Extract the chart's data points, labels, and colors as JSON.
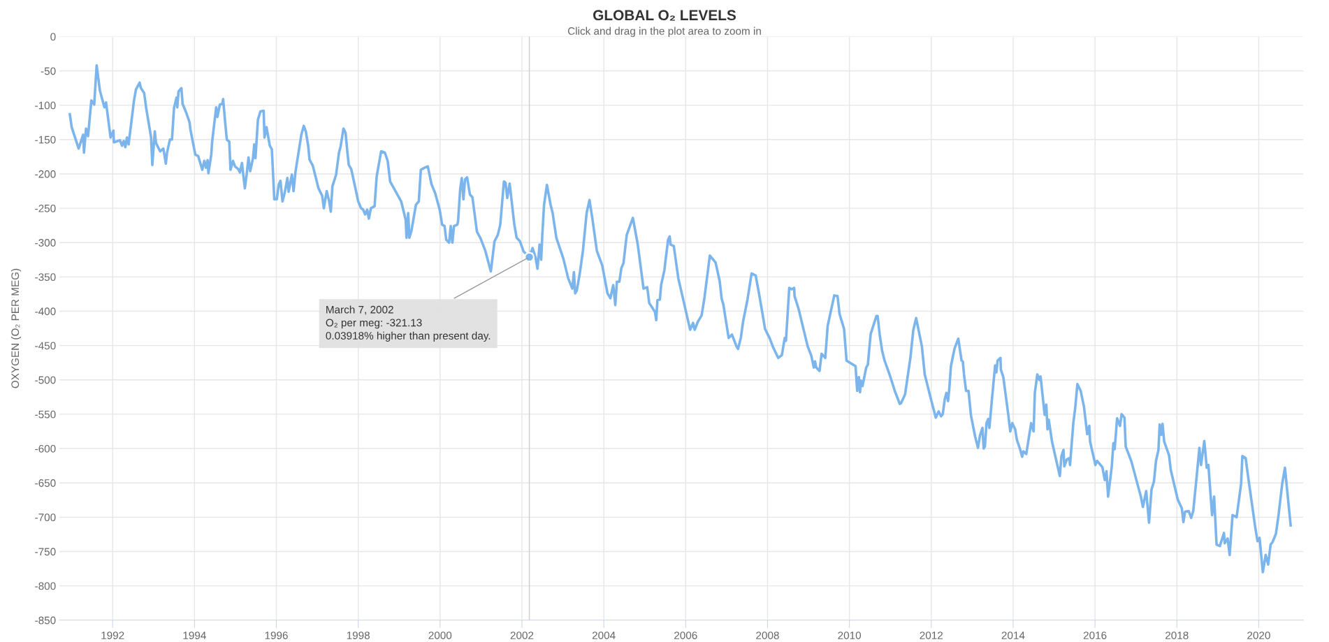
{
  "chart_data": {
    "type": "line",
    "title": "GLOBAL O₂ LEVELS",
    "subtitle": "Click and drag in the plot area to zoom in",
    "ylabel": "OXYGEN (O₂ PER MEG)",
    "xlim": [
      1990.7,
      2021.09
    ],
    "xticks": [
      1992,
      1994,
      1996,
      1998,
      2000,
      2002,
      2004,
      2006,
      2008,
      2010,
      2012,
      2014,
      2016,
      2018,
      2020
    ],
    "ylim": [
      -850,
      0
    ],
    "yticks": [
      0,
      -50,
      -100,
      -150,
      -200,
      -250,
      -300,
      -350,
      -400,
      -450,
      -500,
      -550,
      -600,
      -650,
      -700,
      -750,
      -800,
      -850
    ],
    "grid": true,
    "legend": false,
    "marker": "none",
    "line_style": "solid",
    "ref_lines": [
      {
        "axis": "x",
        "value": 2002.18,
        "color": "#cccccc"
      }
    ],
    "annotations": [
      {
        "text": "March 7, 2002\nO₂ per meg: -321.13\n0.03918% higher than present day.",
        "x": 2002.18,
        "y": -321.13
      }
    ],
    "series": [
      {
        "color": "#7cb5ec",
        "x": [
          1990.955,
          1991.0,
          1991.17,
          1991.28,
          1991.3,
          1991.35,
          1991.4,
          1991.48,
          1991.55,
          1991.61,
          1991.69,
          1991.8,
          1991.84,
          1991.95,
          1992.02,
          1992.03,
          1992.18,
          1992.23,
          1992.27,
          1992.31,
          1992.35,
          1992.39,
          1992.49,
          1992.52,
          1992.57,
          1992.66,
          1992.69,
          1992.77,
          1992.82,
          1992.94,
          1992.97,
          1993.03,
          1993.06,
          1993.16,
          1993.24,
          1993.3,
          1993.33,
          1993.4,
          1993.45,
          1993.5,
          1993.56,
          1993.58,
          1993.61,
          1993.68,
          1993.71,
          1993.8,
          1993.88,
          1993.9,
          1994.02,
          1994.09,
          1994.19,
          1994.24,
          1994.28,
          1994.32,
          1994.34,
          1994.41,
          1994.43,
          1994.53,
          1994.56,
          1994.62,
          1994.68,
          1994.7,
          1994.75,
          1994.79,
          1994.85,
          1994.88,
          1994.94,
          1994.99,
          1995.07,
          1995.11,
          1995.16,
          1995.23,
          1995.27,
          1995.32,
          1995.36,
          1995.43,
          1995.46,
          1995.49,
          1995.55,
          1995.61,
          1995.69,
          1995.71,
          1995.76,
          1995.84,
          1995.89,
          1995.95,
          1996.01,
          1996.06,
          1996.1,
          1996.15,
          1996.21,
          1996.27,
          1996.3,
          1996.38,
          1996.42,
          1996.47,
          1996.61,
          1996.67,
          1996.72,
          1996.78,
          1996.81,
          1996.89,
          1997.03,
          1997.12,
          1997.16,
          1997.23,
          1997.29,
          1997.33,
          1997.37,
          1997.46,
          1997.53,
          1997.57,
          1997.64,
          1997.69,
          1997.74,
          1997.77,
          1997.83,
          1998.0,
          1998.07,
          1998.12,
          1998.17,
          1998.22,
          1998.26,
          1998.31,
          1998.4,
          1998.45,
          1998.56,
          1998.65,
          1998.72,
          1998.78,
          1999.05,
          1999.16,
          1999.18,
          1999.22,
          1999.25,
          1999.3,
          1999.41,
          1999.48,
          1999.53,
          1999.62,
          1999.7,
          1999.79,
          1999.88,
          1999.99,
          2000.05,
          2000.11,
          2000.15,
          2000.22,
          2000.26,
          2000.3,
          2000.34,
          2000.42,
          2000.44,
          2000.49,
          2000.53,
          2000.57,
          2000.61,
          2000.66,
          2000.73,
          2000.79,
          2000.9,
          2000.99,
          2001.1,
          2001.24,
          2001.33,
          2001.41,
          2001.47,
          2001.56,
          2001.6,
          2001.64,
          2001.7,
          2001.75,
          2001.81,
          2001.87,
          2001.95,
          2002.04,
          2002.18,
          2002.26,
          2002.33,
          2002.38,
          2002.43,
          2002.47,
          2002.5,
          2002.54,
          2002.61,
          2002.7,
          2002.75,
          2002.84,
          2003.01,
          2003.13,
          2003.23,
          2003.27,
          2003.3,
          2003.34,
          2003.41,
          2003.49,
          2003.58,
          2003.65,
          2003.72,
          2003.83,
          2003.96,
          2004.09,
          2004.16,
          2004.23,
          2004.28,
          2004.32,
          2004.38,
          2004.43,
          2004.48,
          2004.56,
          2004.71,
          2004.83,
          2004.97,
          2005.06,
          2005.11,
          2005.25,
          2005.28,
          2005.31,
          2005.37,
          2005.4,
          2005.48,
          2005.57,
          2005.61,
          2005.63,
          2005.71,
          2005.82,
          2006.11,
          2006.18,
          2006.22,
          2006.3,
          2006.39,
          2006.46,
          2006.59,
          2006.73,
          2006.83,
          2006.88,
          2006.92,
          2007.05,
          2007.13,
          2007.24,
          2007.28,
          2007.35,
          2007.4,
          2007.51,
          2007.61,
          2007.71,
          2007.8,
          2007.94,
          2008.05,
          2008.14,
          2008.26,
          2008.35,
          2008.42,
          2008.45,
          2008.53,
          2008.59,
          2008.65,
          2008.66,
          2008.76,
          2008.98,
          2009.07,
          2009.13,
          2009.16,
          2009.19,
          2009.27,
          2009.32,
          2009.41,
          2009.47,
          2009.63,
          2009.71,
          2009.76,
          2009.87,
          2009.93,
          2010.15,
          2010.19,
          2010.23,
          2010.26,
          2010.28,
          2010.32,
          2010.41,
          2010.45,
          2010.52,
          2010.66,
          2010.69,
          2010.74,
          2010.8,
          2010.86,
          2010.98,
          2011.12,
          2011.23,
          2011.26,
          2011.36,
          2011.49,
          2011.56,
          2011.63,
          2011.77,
          2011.84,
          2012.0,
          2012.11,
          2012.18,
          2012.24,
          2012.28,
          2012.33,
          2012.37,
          2012.41,
          2012.44,
          2012.48,
          2012.57,
          2012.66,
          2012.74,
          2012.77,
          2012.8,
          2012.85,
          2012.91,
          2012.97,
          2013.07,
          2013.14,
          2013.19,
          2013.25,
          2013.28,
          2013.31,
          2013.35,
          2013.39,
          2013.42,
          2013.47,
          2013.56,
          2013.59,
          2013.62,
          2013.69,
          2013.7,
          2013.76,
          2013.88,
          2013.93,
          2013.98,
          2014.05,
          2014.09,
          2014.17,
          2014.22,
          2014.25,
          2014.32,
          2014.44,
          2014.5,
          2014.53,
          2014.59,
          2014.64,
          2014.67,
          2014.77,
          2014.81,
          2014.84,
          2014.87,
          2014.95,
          2015.14,
          2015.18,
          2015.23,
          2015.25,
          2015.31,
          2015.37,
          2015.39,
          2015.47,
          2015.52,
          2015.57,
          2015.65,
          2015.73,
          2015.81,
          2015.86,
          2015.88,
          2016.01,
          2016.05,
          2016.18,
          2016.24,
          2016.28,
          2016.32,
          2016.41,
          2016.45,
          2016.48,
          2016.54,
          2016.61,
          2016.65,
          2016.72,
          2016.75,
          2016.89,
          2017.12,
          2017.17,
          2017.25,
          2017.32,
          2017.38,
          2017.44,
          2017.49,
          2017.55,
          2017.58,
          2017.62,
          2017.65,
          2017.69,
          2017.81,
          2017.85,
          2018.02,
          2018.12,
          2018.16,
          2018.2,
          2018.29,
          2018.35,
          2018.4,
          2018.48,
          2018.55,
          2018.59,
          2018.67,
          2018.73,
          2018.77,
          2018.86,
          2018.91,
          2018.97,
          2019.05,
          2019.15,
          2019.17,
          2019.24,
          2019.29,
          2019.36,
          2019.46,
          2019.57,
          2019.6,
          2019.68,
          2019.75,
          2019.91,
          2019.97,
          2020.02,
          2020.1,
          2020.17,
          2020.23,
          2020.29,
          2020.34,
          2020.42,
          2020.48,
          2020.57,
          2020.64,
          2020.78
        ],
        "values": [
          -113,
          -132,
          -163,
          -143,
          -169,
          -134,
          -145,
          -93,
          -99,
          -42,
          -79,
          -103,
          -96,
          -147,
          -137,
          -154,
          -151,
          -159,
          -152,
          -161,
          -147,
          -157,
          -109,
          -94,
          -77,
          -67,
          -75,
          -82,
          -104,
          -147,
          -187,
          -138,
          -155,
          -167,
          -163,
          -185,
          -169,
          -150,
          -150,
          -104,
          -89,
          -103,
          -80,
          -75,
          -98,
          -111,
          -125,
          -135,
          -172,
          -174,
          -194,
          -181,
          -191,
          -180,
          -199,
          -172,
          -154,
          -103,
          -117,
          -99,
          -98,
          -91,
          -125,
          -150,
          -153,
          -194,
          -181,
          -189,
          -193,
          -198,
          -184,
          -221,
          -203,
          -176,
          -196,
          -177,
          -157,
          -177,
          -121,
          -109,
          -108,
          -147,
          -132,
          -159,
          -164,
          -237,
          -237,
          -215,
          -210,
          -240,
          -226,
          -206,
          -226,
          -201,
          -225,
          -196,
          -143,
          -130,
          -138,
          -160,
          -179,
          -188,
          -221,
          -232,
          -250,
          -225,
          -240,
          -255,
          -218,
          -201,
          -169,
          -160,
          -134,
          -140,
          -171,
          -187,
          -193,
          -240,
          -250,
          -252,
          -259,
          -252,
          -265,
          -250,
          -247,
          -204,
          -167,
          -169,
          -181,
          -211,
          -240,
          -267,
          -293,
          -257,
          -293,
          -283,
          -245,
          -240,
          -194,
          -191,
          -189,
          -215,
          -228,
          -252,
          -274,
          -276,
          -296,
          -300,
          -276,
          -300,
          -276,
          -274,
          -269,
          -223,
          -206,
          -237,
          -208,
          -205,
          -230,
          -234,
          -284,
          -294,
          -311,
          -342,
          -298,
          -289,
          -274,
          -211,
          -213,
          -235,
          -214,
          -240,
          -272,
          -293,
          -298,
          -313,
          -321,
          -308,
          -321,
          -338,
          -303,
          -325,
          -286,
          -245,
          -216,
          -245,
          -257,
          -293,
          -323,
          -352,
          -367,
          -343,
          -374,
          -370,
          -346,
          -312,
          -257,
          -238,
          -265,
          -312,
          -333,
          -374,
          -381,
          -362,
          -391,
          -357,
          -357,
          -337,
          -330,
          -289,
          -264,
          -303,
          -367,
          -365,
          -388,
          -401,
          -413,
          -384,
          -383,
          -362,
          -340,
          -296,
          -291,
          -303,
          -305,
          -352,
          -427,
          -417,
          -427,
          -415,
          -406,
          -380,
          -319,
          -329,
          -356,
          -382,
          -390,
          -439,
          -434,
          -451,
          -455,
          -438,
          -416,
          -383,
          -345,
          -348,
          -377,
          -426,
          -439,
          -453,
          -468,
          -464,
          -439,
          -443,
          -366,
          -368,
          -366,
          -378,
          -397,
          -451,
          -465,
          -482,
          -473,
          -482,
          -487,
          -462,
          -468,
          -421,
          -377,
          -378,
          -404,
          -426,
          -472,
          -480,
          -516,
          -496,
          -518,
          -501,
          -509,
          -482,
          -478,
          -433,
          -407,
          -407,
          -434,
          -458,
          -472,
          -492,
          -518,
          -535,
          -534,
          -521,
          -468,
          -428,
          -410,
          -451,
          -492,
          -530,
          -555,
          -546,
          -553,
          -550,
          -528,
          -519,
          -531,
          -513,
          -480,
          -454,
          -440,
          -472,
          -473,
          -492,
          -516,
          -516,
          -552,
          -582,
          -599,
          -581,
          -570,
          -600,
          -597,
          -563,
          -557,
          -570,
          -536,
          -479,
          -489,
          -472,
          -468,
          -485,
          -496,
          -550,
          -575,
          -563,
          -572,
          -587,
          -601,
          -612,
          -604,
          -608,
          -563,
          -575,
          -519,
          -492,
          -500,
          -495,
          -551,
          -536,
          -572,
          -558,
          -590,
          -640,
          -611,
          -602,
          -626,
          -616,
          -614,
          -624,
          -563,
          -539,
          -506,
          -516,
          -539,
          -579,
          -567,
          -590,
          -624,
          -618,
          -627,
          -646,
          -633,
          -670,
          -626,
          -592,
          -601,
          -556,
          -567,
          -550,
          -555,
          -597,
          -619,
          -670,
          -685,
          -662,
          -708,
          -660,
          -648,
          -618,
          -602,
          -565,
          -580,
          -564,
          -590,
          -610,
          -631,
          -674,
          -687,
          -707,
          -692,
          -691,
          -701,
          -691,
          -643,
          -599,
          -624,
          -589,
          -628,
          -624,
          -697,
          -670,
          -740,
          -742,
          -723,
          -738,
          -731,
          -755,
          -697,
          -700,
          -651,
          -611,
          -614,
          -645,
          -713,
          -735,
          -730,
          -780,
          -755,
          -769,
          -740,
          -736,
          -724,
          -699,
          -653,
          -628,
          -712
        ]
      }
    ]
  }
}
